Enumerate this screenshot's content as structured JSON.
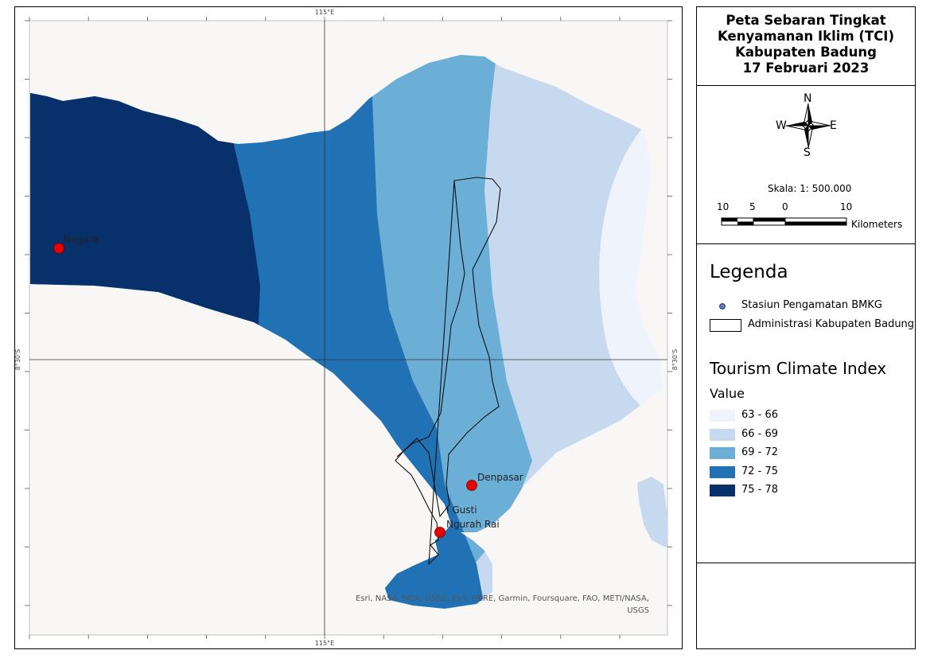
{
  "map": {
    "tick_labels": {
      "lon_top": "115°E",
      "lon_bottom": "115°E",
      "lat_left": "8°30'S",
      "lat_right": "8°30'S"
    },
    "stations": [
      {
        "name": "Negara"
      },
      {
        "name": "Denpasar"
      },
      {
        "name_line1": "I Gusti",
        "name_line2": "Ngurah Rai"
      }
    ],
    "credit_line1": "Esri, NASA, NGA, USGS, Esri, HERE, Garmin, Foursquare, FAO, METI/NASA,",
    "credit_line2": "USGS"
  },
  "title": {
    "line1": "Peta Sebaran Tingkat",
    "line2": "Kenyamanan Iklim (TCI)",
    "line3": "Kabupaten Badung",
    "line4": "17 Februari 2023"
  },
  "compass": {
    "n": "N",
    "s": "S",
    "e": "E",
    "w": "W"
  },
  "scale": {
    "label": "Skala: 1: 500.000",
    "ticks": [
      "10",
      "5",
      "0",
      "10"
    ],
    "unit": "Kilometers"
  },
  "legend": {
    "title": "Legenda",
    "station_label": "Stasiun Pengamatan BMKG",
    "admin_label": "Administrasi Kabupaten Badung",
    "index_title": "Tourism Climate Index",
    "value_title": "Value",
    "classes": [
      {
        "label": "63 - 66",
        "color": "#eff3fb"
      },
      {
        "label": "66 - 69",
        "color": "#c6d9ef"
      },
      {
        "label": "69 - 72",
        "color": "#6baed6"
      },
      {
        "label": "72 - 75",
        "color": "#2171b5"
      },
      {
        "label": "75 - 78",
        "color": "#08306b"
      }
    ]
  },
  "colors": {
    "station": "#e60000",
    "background": "#f8f7f6"
  }
}
